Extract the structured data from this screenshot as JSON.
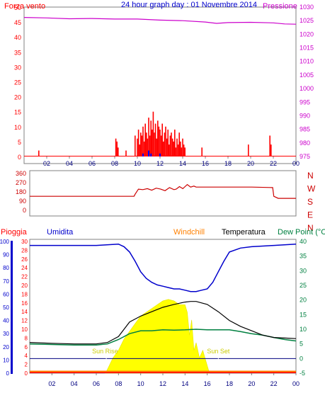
{
  "title": "24 hour graph day : 01 Novembre 2014",
  "colors": {
    "frame": "#808080",
    "wind": "#ff0000",
    "gust": "#0000ff",
    "pressure": "#cc00cc",
    "direction": "#cc0000",
    "rain": "#ff0000",
    "humidity": "#0000cc",
    "windchill": "#ff8000",
    "temperature": "#000000",
    "dewpoint": "#008040",
    "solar": "#ffff00",
    "sun_marker": "#cccc00",
    "grid": "#000080"
  },
  "time_ticks": [
    "02",
    "04",
    "06",
    "08",
    "10",
    "12",
    "14",
    "16",
    "18",
    "20",
    "22",
    "00"
  ],
  "chart_data": [
    {
      "type": "bar",
      "name_left": "Forza vento",
      "name_right": "Pressione",
      "y_left_ticks": [
        "0",
        "5",
        "10",
        "15",
        "20",
        "25",
        "30",
        "35",
        "40",
        "45",
        "50"
      ],
      "y_left_lim": [
        0,
        50
      ],
      "y_right_ticks": [
        "975",
        "980",
        "985",
        "990",
        "995",
        "1000",
        "1005",
        "1010",
        "1015",
        "1020",
        "1025",
        "1030"
      ],
      "y_right_lim": [
        975,
        1030
      ],
      "wind_x": [
        1.3,
        8.1,
        8.2,
        8.3,
        9.0,
        9.8,
        10.0,
        10.1,
        10.2,
        10.3,
        10.4,
        10.5,
        10.6,
        10.7,
        10.8,
        10.9,
        11.0,
        11.1,
        11.2,
        11.3,
        11.4,
        11.5,
        11.6,
        11.7,
        11.8,
        11.9,
        12.0,
        12.1,
        12.2,
        12.3,
        12.4,
        12.5,
        12.6,
        12.7,
        12.8,
        12.9,
        13.0,
        13.1,
        13.2,
        13.3,
        13.4,
        13.5,
        13.6,
        13.7,
        13.8,
        13.9,
        14.0,
        14.1,
        14.2,
        15.7,
        19.8,
        21.7,
        21.8
      ],
      "wind_y": [
        2,
        6,
        5,
        3,
        2,
        7,
        6,
        9,
        4,
        8,
        7,
        10,
        5,
        11,
        8,
        6,
        13,
        7,
        12,
        9,
        15,
        8,
        11,
        6,
        12,
        10,
        9,
        7,
        11,
        5,
        8,
        10,
        6,
        9,
        4,
        7,
        8,
        6,
        5,
        9,
        3,
        6,
        4,
        8,
        5,
        3,
        6,
        4,
        3,
        3,
        4,
        7,
        4
      ],
      "gust_x": [
        10.5,
        11.0,
        11.2,
        12.0
      ],
      "gust_y": [
        1,
        2,
        1,
        1
      ],
      "pressure_x": [
        0,
        2,
        4,
        6,
        8,
        10,
        12,
        14,
        16,
        17,
        18,
        20,
        22,
        23,
        24
      ],
      "pressure_y": [
        1026.2,
        1026.0,
        1025.7,
        1025.8,
        1025.6,
        1025.6,
        1025.2,
        1025.0,
        1024.5,
        1024.0,
        1024.3,
        1024.4,
        1024.2,
        1023.8,
        1023.7
      ]
    },
    {
      "type": "line",
      "name": "",
      "y_ticks": [
        "360",
        "270",
        "180",
        "90",
        "0"
      ],
      "y_lim": [
        0,
        360
      ],
      "compass_labels": [
        "N",
        "W",
        "S",
        "E",
        "N"
      ],
      "x": [
        0,
        8.0,
        9.4,
        9.5,
        9.8,
        10.2,
        10.6,
        11.0,
        11.4,
        11.8,
        12.2,
        12.6,
        13.0,
        13.2,
        13.5,
        13.8,
        14.2,
        14.5,
        14.8,
        15.0,
        17,
        20,
        21.9,
        22.0,
        22.4,
        24
      ],
      "y": [
        130,
        130,
        130,
        150,
        200,
        195,
        205,
        190,
        210,
        200,
        185,
        215,
        195,
        200,
        225,
        205,
        245,
        220,
        230,
        220,
        220,
        220,
        215,
        130,
        110,
        110
      ]
    },
    {
      "type": "line",
      "left_label_rain": "Pioggia",
      "left_label_humidity": "Umidita",
      "label_windchill": "Windchill",
      "label_temperature": "Temperatura",
      "label_dewpoint": "Dew Point (°C",
      "humidity_ticks": [
        "0",
        "10",
        "20",
        "30",
        "40",
        "50",
        "60",
        "70",
        "80",
        "90",
        "100"
      ],
      "humidity_lim": [
        0,
        100
      ],
      "rain_ticks": [
        "0",
        "2",
        "4",
        "6",
        "8",
        "10",
        "12",
        "14",
        "16",
        "18",
        "20",
        "22",
        "24",
        "26",
        "28",
        "30"
      ],
      "rain_lim": [
        0,
        30
      ],
      "temp_ticks": [
        "-5",
        "0",
        "5",
        "10",
        "15",
        "20",
        "25",
        "30",
        "35",
        "40"
      ],
      "temp_lim": [
        -5,
        40
      ],
      "sun_rise_label": "Sun Rise",
      "sun_set_label": "Sun Set",
      "sun_rise_hour": 6.9,
      "sun_set_hour": 17.0,
      "humidity_x": [
        0,
        2,
        4,
        6,
        8,
        8.5,
        9,
        9.5,
        10,
        10.5,
        11,
        11.5,
        12,
        12.5,
        13,
        13.5,
        14,
        14.5,
        15,
        15.5,
        16,
        16.5,
        17,
        17.5,
        18,
        19,
        20,
        22,
        24
      ],
      "humidity_y": [
        97,
        97,
        97,
        97,
        98,
        96,
        92,
        85,
        77,
        72,
        69,
        67,
        66,
        65,
        64,
        64,
        63,
        62,
        62,
        63,
        64,
        69,
        77,
        85,
        92,
        95,
        96,
        97,
        98
      ],
      "temperature_x": [
        0,
        2,
        4,
        6,
        7,
        8,
        9,
        10,
        11,
        12,
        13,
        14,
        14.5,
        15,
        15.5,
        16,
        17,
        18,
        19,
        20,
        21,
        22,
        23,
        24
      ],
      "temperature_y": [
        5.5,
        5.2,
        5.0,
        5.0,
        5.5,
        7.5,
        12.5,
        14.5,
        16,
        17.5,
        18.5,
        19.3,
        19.5,
        19.5,
        19,
        18.5,
        16,
        13,
        11,
        9.5,
        8,
        7.2,
        7.0,
        6.8
      ],
      "dewpoint_x": [
        0,
        2,
        4,
        6,
        7,
        8,
        9,
        10,
        11,
        12,
        13,
        14,
        15,
        16,
        17,
        18,
        19,
        20,
        21,
        22,
        23,
        24
      ],
      "dewpoint_y": [
        5.0,
        4.8,
        4.6,
        4.6,
        5.0,
        6.5,
        8.5,
        9.5,
        9.5,
        9.8,
        9.7,
        9.8,
        10.0,
        9.8,
        9.8,
        9.8,
        9.2,
        8.5,
        8.0,
        7.2,
        6.5,
        6.0
      ],
      "windchill_x": [
        0,
        24
      ],
      "windchill_y": [
        -5,
        -5
      ],
      "solar_x": [
        6.8,
        7.0,
        7.5,
        8.0,
        8.5,
        9.0,
        9.5,
        10.0,
        10.5,
        11.0,
        11.5,
        12.0,
        12.5,
        13.0,
        13.5,
        14.0,
        14.2,
        14.4,
        14.6,
        14.8,
        15.0,
        15.3,
        15.6,
        16.0,
        16.2
      ],
      "solar_y": [
        0,
        0.5,
        2,
        3,
        4.5,
        5.5,
        6.5,
        7.5,
        8,
        8.5,
        9,
        9.5,
        9.7,
        9.5,
        9,
        9,
        8,
        5,
        7,
        3,
        4,
        2,
        3,
        1,
        0
      ],
      "rain_x": [
        0,
        24
      ],
      "rain_y": [
        0,
        0
      ]
    }
  ]
}
